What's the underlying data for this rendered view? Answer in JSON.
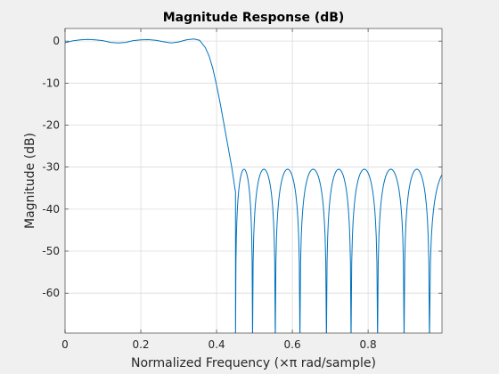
{
  "chart_data": {
    "type": "line",
    "title": "Magnitude Response (dB)",
    "xlabel": "Normalized Frequency (×π rad/sample)",
    "ylabel": "Magnitude (dB)",
    "xlim": [
      0,
      0.995
    ],
    "ylim": [
      -69.5,
      3
    ],
    "xticks": [
      0,
      0.2,
      0.4,
      0.6,
      0.8
    ],
    "xtick_labels": [
      "0",
      "0.2",
      "0.4",
      "0.6",
      "0.8"
    ],
    "yticks": [
      0,
      -10,
      -20,
      -30,
      -40,
      -50,
      -60
    ],
    "ytick_labels": [
      "0",
      "-10",
      "-20",
      "-30",
      "-40",
      "-50",
      "-60"
    ],
    "grid": true,
    "line_color": "#0072bd",
    "series": [
      {
        "x": [
          0,
          0.02,
          0.04,
          0.06,
          0.08,
          0.1,
          0.12,
          0.14,
          0.16,
          0.18,
          0.2,
          0.22,
          0.24,
          0.26,
          0.28,
          0.3,
          0.32,
          0.34,
          0.355,
          0.37,
          0.38,
          0.39,
          0.4,
          0.41,
          0.42,
          0.43,
          0.44,
          0.45
        ],
        "y": [
          -0.4,
          0.05,
          0.3,
          0.4,
          0.3,
          0.1,
          -0.3,
          -0.45,
          -0.3,
          0.1,
          0.3,
          0.35,
          0.2,
          -0.15,
          -0.45,
          -0.2,
          0.3,
          0.5,
          0.2,
          -1.5,
          -3.5,
          -6.5,
          -10.5,
          -15,
          -20,
          -25,
          -30,
          -36
        ]
      }
    ],
    "stopband": {
      "ripple_db": -30.5,
      "null_frequencies": [
        0.45,
        0.495,
        0.555,
        0.62,
        0.69,
        0.755,
        0.825,
        0.895,
        0.962
      ],
      "peak_frequencies": [
        0.465,
        0.522,
        0.588,
        0.655,
        0.722,
        0.79,
        0.86,
        0.93,
        0.995
      ]
    }
  }
}
